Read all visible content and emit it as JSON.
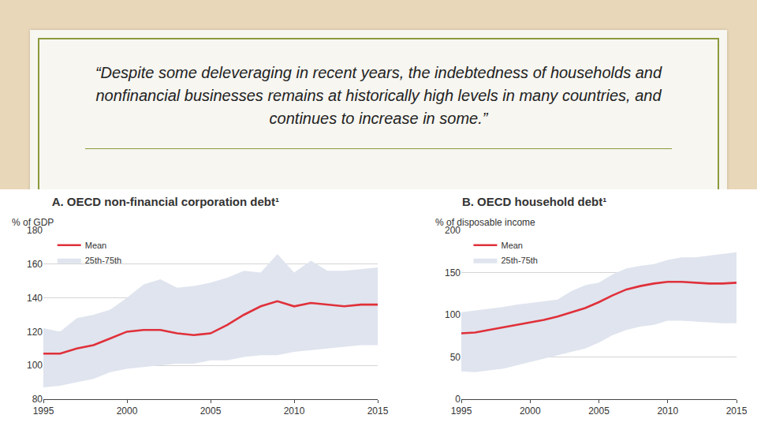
{
  "quote": "“Despite some deleveraging in recent years, the indebtedness of households and nonfinancial businesses remains at historically high levels in many countries, and continues to increase in some.”",
  "chart_data": [
    {
      "type": "line",
      "title": "A. OECD non-financial corporation debt¹",
      "y_label": "% of GDP",
      "x": [
        1995,
        1996,
        1997,
        1998,
        1999,
        2000,
        2001,
        2002,
        2003,
        2004,
        2005,
        2006,
        2007,
        2008,
        2009,
        2010,
        2011,
        2012,
        2013,
        2014,
        2015
      ],
      "xlim": [
        1995,
        2015
      ],
      "xticks": [
        1995,
        2000,
        2005,
        2010,
        2015
      ],
      "ylim": [
        80,
        180
      ],
      "yticks": [
        80,
        100,
        120,
        140,
        160,
        180
      ],
      "grid": true,
      "legend": "top-left",
      "series": [
        {
          "name": "25th-75th",
          "type": "area",
          "color": "#dfe4ee",
          "lower": [
            87,
            88,
            90,
            92,
            96,
            98,
            99,
            100,
            101,
            101,
            103,
            103,
            105,
            106,
            106,
            108,
            109,
            110,
            111,
            112,
            112
          ],
          "upper": [
            122,
            120,
            128,
            130,
            133,
            140,
            148,
            151,
            146,
            147,
            149,
            152,
            156,
            155,
            166,
            155,
            162,
            156,
            156,
            157,
            158
          ]
        },
        {
          "name": "Mean",
          "type": "line",
          "color": "#e0303a",
          "values": [
            107,
            107,
            110,
            112,
            116,
            120,
            121,
            121,
            119,
            118,
            119,
            124,
            130,
            135,
            138,
            135,
            137,
            136,
            135,
            136,
            136
          ]
        }
      ]
    },
    {
      "type": "line",
      "title": "B. OECD household debt¹",
      "y_label": "% of disposable income",
      "x": [
        1995,
        1996,
        1997,
        1998,
        1999,
        2000,
        2001,
        2002,
        2003,
        2004,
        2005,
        2006,
        2007,
        2008,
        2009,
        2010,
        2011,
        2012,
        2013,
        2014,
        2015
      ],
      "xlim": [
        1995,
        2015
      ],
      "xticks": [
        1995,
        2000,
        2005,
        2010,
        2015
      ],
      "ylim": [
        0,
        200
      ],
      "yticks": [
        0,
        50,
        100,
        150,
        200
      ],
      "grid": true,
      "legend": "top-left",
      "series": [
        {
          "name": "25th-75th",
          "type": "area",
          "color": "#dfe4ee",
          "lower": [
            33,
            32,
            34,
            36,
            40,
            44,
            48,
            52,
            56,
            60,
            67,
            76,
            82,
            86,
            88,
            93,
            93,
            92,
            91,
            90,
            90
          ],
          "upper": [
            103,
            105,
            107,
            109,
            112,
            114,
            116,
            118,
            128,
            135,
            138,
            148,
            155,
            158,
            160,
            165,
            168,
            168,
            170,
            172,
            174
          ]
        },
        {
          "name": "Mean",
          "type": "line",
          "color": "#e0303a",
          "values": [
            78,
            79,
            82,
            85,
            88,
            91,
            94,
            98,
            103,
            108,
            115,
            123,
            130,
            134,
            137,
            139,
            139,
            138,
            137,
            137,
            138
          ]
        }
      ]
    }
  ]
}
